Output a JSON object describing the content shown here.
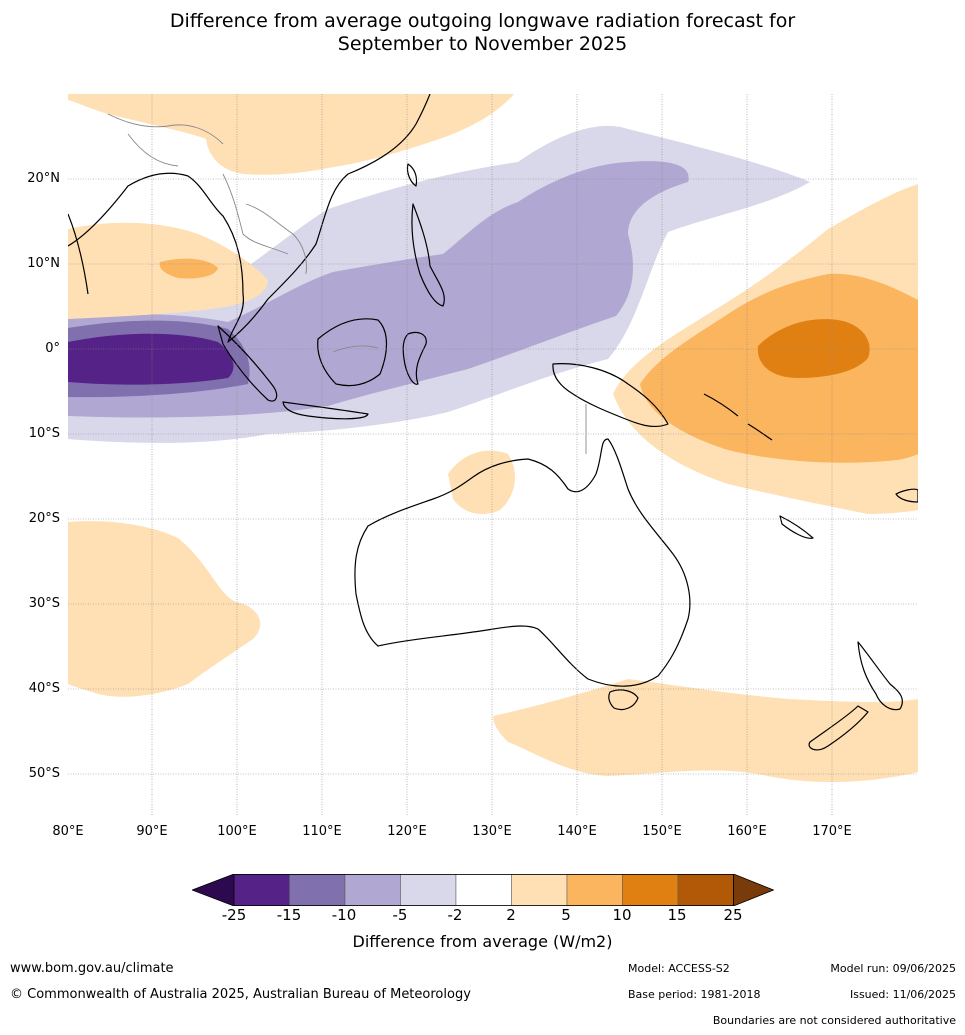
{
  "title_line1": "Difference from average outgoing longwave radiation forecast for",
  "title_line2": "September to November 2025",
  "lat_labels": [
    "20°N",
    "10°N",
    "0°",
    "10°S",
    "20°S",
    "30°S",
    "40°S",
    "50°S"
  ],
  "lon_labels": [
    "80°E",
    "90°E",
    "100°E",
    "110°E",
    "120°E",
    "130°E",
    "140°E",
    "150°E",
    "160°E",
    "170°E"
  ],
  "colorbar": {
    "ticks": [
      "-25",
      "-15",
      "-10",
      "-5",
      "-2",
      "2",
      "5",
      "10",
      "15",
      "25"
    ],
    "colors": [
      "#552288",
      "#8070ae",
      "#b0a8d2",
      "#d8d8ea",
      "#ffffff",
      "#ffe0b4",
      "#fbb55f",
      "#e08013",
      "#b25907"
    ],
    "under_color": "#2d0a50",
    "over_color": "#7a3b0a",
    "label": "Difference from average (W/m2)"
  },
  "footer": {
    "website": "www.bom.gov.au/climate",
    "copyright": "© Commonwealth of Australia 2025, Australian Bureau of Meteorology",
    "model": "Model: ACCESS-S2",
    "base_period": "Base period: 1981-2018",
    "model_run": "Model run: 09/06/2025",
    "issued": "Issued: 11/06/2025",
    "disclaimer": "Boundaries are not considered authoritative"
  }
}
